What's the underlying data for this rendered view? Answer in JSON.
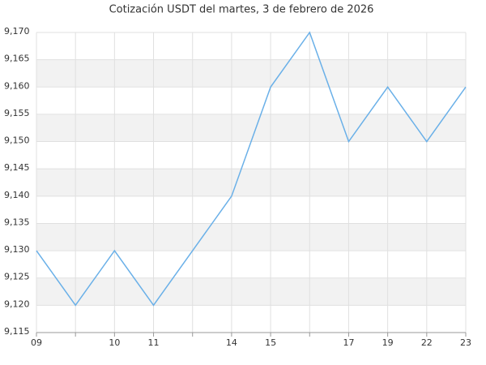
{
  "chart_data": {
    "type": "line",
    "title": "Cotización USDT del martes, 3 de febrero de 2026",
    "categories": [
      "09",
      null,
      "10",
      "11",
      null,
      "14",
      "15",
      null,
      "17",
      "19",
      "22",
      "23"
    ],
    "series": [
      {
        "color": "#6ab0e8",
        "values": [
          9.13,
          9.12,
          9.13,
          9.12,
          9.13,
          9.14,
          9.16,
          9.17,
          9.15,
          9.16,
          9.15,
          9.16
        ]
      }
    ],
    "ylim": [
      9.115,
      9.17
    ],
    "yticks": [
      {
        "value": 9.115,
        "label": "9,115"
      },
      {
        "value": 9.12,
        "label": "9,120"
      },
      {
        "value": 9.125,
        "label": "9,125"
      },
      {
        "value": 9.13,
        "label": "9,130"
      },
      {
        "value": 9.135,
        "label": "9,135"
      },
      {
        "value": 9.14,
        "label": "9,140"
      },
      {
        "value": 9.145,
        "label": "9,145"
      },
      {
        "value": 9.15,
        "label": "9,150"
      },
      {
        "value": 9.155,
        "label": "9,155"
      },
      {
        "value": 9.16,
        "label": "9,160"
      },
      {
        "value": 9.165,
        "label": "9,165"
      },
      {
        "value": 9.17,
        "label": "9,170"
      }
    ],
    "grid": true
  }
}
